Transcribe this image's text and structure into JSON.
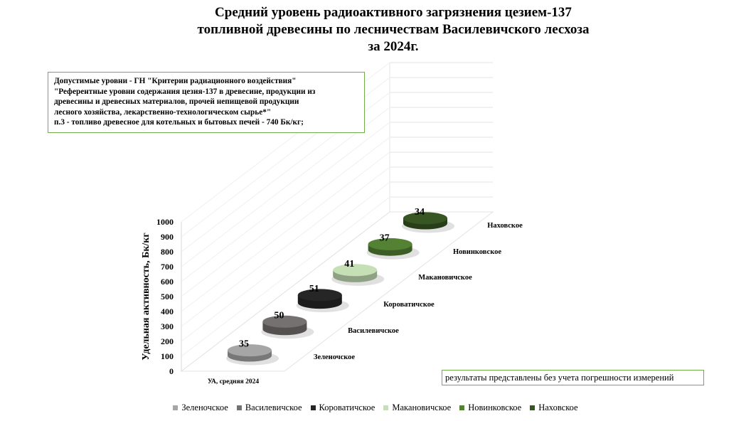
{
  "title_lines": [
    "Средний уровень радиоактивного загрязнения цезием-137",
    "топливной древесины по лесничествам Василевичского лесхоза",
    "за 2024г."
  ],
  "note_lines": [
    "Допустимые уровни - ГН \"Критерии радиационного воздействия\"",
    "\"Референтные уровни содержания цезия-137 в древесине, продукции из",
    "древесины и древесных материалов, прочей непищевой продукции",
    "лесного хозяйства,  лекарственно-технологическом сырье*\"",
    "п.3 - топливо древесное для котельных и бытовых печей - 740 Бк/кг;"
  ],
  "footnote": "результаты представлены без учета погрешности измерений",
  "chart_data": {
    "type": "bar",
    "title": "Средний уровень радиоактивного загрязнения цезием-137 топливной древесины по лесничествам Василевичского лесхоза за 2024г.",
    "categories": [
      "УА, средняя 2024"
    ],
    "ylabel": "Удельная активность, Бк/кг",
    "ylim": [
      0,
      1000
    ],
    "yticks": [
      "0",
      "100",
      "200",
      "300",
      "400",
      "500",
      "600",
      "700",
      "800",
      "900",
      "1000"
    ],
    "legend_position": "bottom",
    "series": [
      {
        "name": "Зеленочское",
        "values": [
          35
        ],
        "color": "#a6a6a6"
      },
      {
        "name": "Василевичское",
        "values": [
          50
        ],
        "color": "#767171"
      },
      {
        "name": "Короватичское",
        "values": [
          51
        ],
        "color": "#262626"
      },
      {
        "name": "Макановичское",
        "values": [
          41
        ],
        "color": "#c5e0b4"
      },
      {
        "name": "Новинковское",
        "values": [
          37
        ],
        "color": "#548235"
      },
      {
        "name": "Наховское",
        "values": [
          34
        ],
        "color": "#375623"
      }
    ]
  }
}
